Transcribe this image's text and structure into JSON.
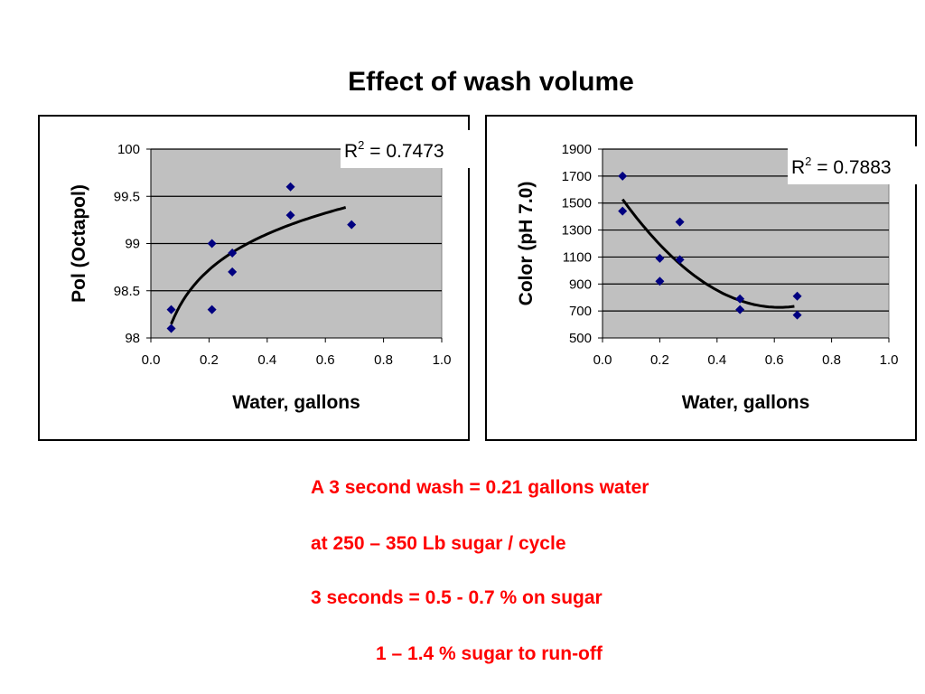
{
  "title": "Effect of wash volume",
  "chart_data": [
    {
      "type": "scatter",
      "title": "",
      "xlabel": "Water, gallons",
      "ylabel": "Pol (Octapol)",
      "xlim": [
        0.0,
        1.0
      ],
      "ylim": [
        98,
        100
      ],
      "x_ticks": [
        "0.0",
        "0.2",
        "0.4",
        "0.6",
        "0.8",
        "1.0"
      ],
      "y_ticks": [
        "98",
        "98.5",
        "99",
        "99.5",
        "100"
      ],
      "grid": true,
      "trendline": "logarithmic",
      "r2_label": "R",
      "r2_value": " = 0.7473",
      "series": [
        {
          "x": [
            0.07,
            0.07,
            0.21,
            0.21,
            0.28,
            0.28,
            0.48,
            0.48,
            0.69
          ],
          "y": [
            98.3,
            98.1,
            99.0,
            98.3,
            98.9,
            98.7,
            99.6,
            99.3,
            99.2
          ]
        }
      ],
      "trend_x": [
        0.07,
        0.67
      ],
      "marker_color": "#000080",
      "plot_bg": "#c0c0c0"
    },
    {
      "type": "scatter",
      "title": "",
      "xlabel": "Water, gallons",
      "ylabel": "Color (pH 7.0)",
      "xlim": [
        0.0,
        1.0
      ],
      "ylim": [
        500,
        1900
      ],
      "x_ticks": [
        "0.0",
        "0.2",
        "0.4",
        "0.6",
        "0.8",
        "1.0"
      ],
      "y_ticks": [
        "500",
        "700",
        "900",
        "1100",
        "1300",
        "1500",
        "1700",
        "1900"
      ],
      "grid": true,
      "trendline": "polynomial",
      "r2_label": "R",
      "r2_value": " = 0.7883",
      "series": [
        {
          "x": [
            0.07,
            0.07,
            0.2,
            0.2,
            0.27,
            0.27,
            0.48,
            0.48,
            0.68,
            0.68
          ],
          "y": [
            1700,
            1440,
            1090,
            920,
            1360,
            1080,
            790,
            710,
            810,
            670
          ]
        }
      ],
      "trend_x": [
        0.07,
        0.67
      ],
      "marker_color": "#000080",
      "plot_bg": "#c0c0c0"
    }
  ],
  "notes": [
    "A 3 second wash = 0.21 gallons water",
    "at 250 – 350 Lb sugar / cycle",
    "3 seconds = 0.5 - 0.7 % on sugar",
    "1 – 1.4 % sugar to run-off"
  ]
}
